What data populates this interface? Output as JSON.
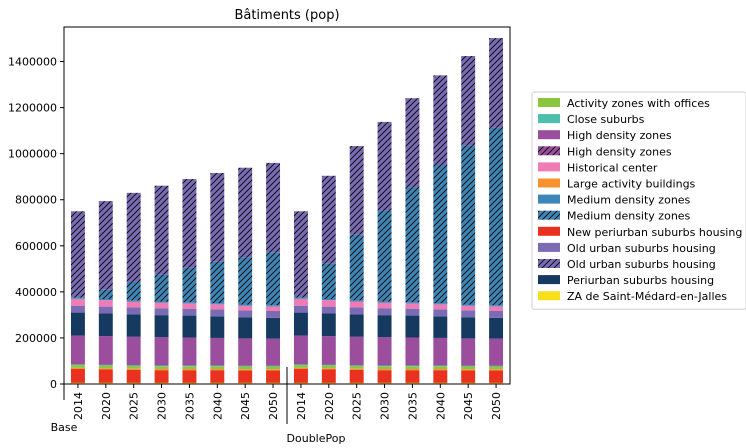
{
  "chart_data": {
    "type": "bar",
    "stacked": true,
    "title": "Bâtiments (pop)",
    "xlabel": "",
    "ylabel": "",
    "ylim": [
      0,
      1550000
    ],
    "yticks": [
      0,
      200000,
      400000,
      600000,
      800000,
      1000000,
      1200000,
      1400000
    ],
    "grid": false,
    "legend_position": "right",
    "groups": [
      {
        "label": "Base",
        "categories": [
          "2014",
          "2020",
          "2025",
          "2030",
          "2035",
          "2040",
          "2045",
          "2050"
        ]
      },
      {
        "label": "DoublePop",
        "categories": [
          "2014",
          "2020",
          "2025",
          "2030",
          "2035",
          "2040",
          "2045",
          "2050"
        ]
      }
    ],
    "series": [
      {
        "name": "ZA de Saint-Médard-en-Jalles",
        "color": "#f7e01b",
        "hatch": false,
        "values": [
          5000,
          5000,
          5000,
          5000,
          5000,
          5000,
          5000,
          5000,
          5000,
          5000,
          5000,
          5000,
          5000,
          5000,
          5000,
          5000
        ]
      },
      {
        "name": "New periurban suburbs housing",
        "color": "#e8311e",
        "hatch": false,
        "values": [
          60000,
          58000,
          56000,
          55000,
          55000,
          55000,
          54000,
          54000,
          60000,
          58000,
          56000,
          55000,
          55000,
          55000,
          54000,
          54000
        ]
      },
      {
        "name": "Large activity buildings",
        "color": "#f7922e",
        "hatch": false,
        "values": [
          5000,
          5000,
          5000,
          5000,
          5000,
          5000,
          5000,
          5000,
          5000,
          5000,
          5000,
          5000,
          5000,
          5000,
          5000,
          5000
        ]
      },
      {
        "name": "Activity zones with offices",
        "color": "#8cc63f",
        "hatch": false,
        "values": [
          12000,
          12000,
          12000,
          12000,
          12000,
          12000,
          12000,
          12000,
          12000,
          12000,
          12000,
          12000,
          12000,
          12000,
          12000,
          12000
        ]
      },
      {
        "name": "Close suburbs",
        "color": "#4dbfaa",
        "hatch": false,
        "values": [
          3000,
          3000,
          3000,
          3000,
          3000,
          3000,
          3000,
          3000,
          3000,
          3000,
          3000,
          3000,
          3000,
          3000,
          3000,
          3000
        ]
      },
      {
        "name": "High density zones",
        "color": "#9b4d9e",
        "hatch": false,
        "values": [
          125000,
          125000,
          124000,
          123000,
          122000,
          120000,
          119000,
          118000,
          125000,
          125000,
          124000,
          123000,
          122000,
          120000,
          119000,
          118000
        ]
      },
      {
        "name": "Periurban suburbs housing",
        "color": "#163a5f",
        "hatch": false,
        "values": [
          100000,
          98000,
          97000,
          96000,
          95000,
          94000,
          92000,
          90000,
          100000,
          98000,
          97000,
          96000,
          95000,
          94000,
          92000,
          90000
        ]
      },
      {
        "name": "Old urban suburbs housing",
        "color": "#7a6bb5",
        "hatch": false,
        "values": [
          30000,
          30000,
          30000,
          30000,
          30000,
          30000,
          30000,
          30000,
          30000,
          30000,
          30000,
          30000,
          30000,
          30000,
          30000,
          30000
        ]
      },
      {
        "name": "Historical center",
        "color": "#f07cb6",
        "hatch": false,
        "values": [
          30000,
          28000,
          26000,
          24000,
          23000,
          22000,
          20000,
          20000,
          30000,
          28000,
          26000,
          24000,
          23000,
          22000,
          20000,
          20000
        ]
      },
      {
        "name": "Medium density zones",
        "color": "#3d86b8",
        "hatch": false,
        "values": [
          5000,
          5000,
          5000,
          5000,
          5000,
          5000,
          5000,
          5000,
          5000,
          5000,
          5000,
          5000,
          5000,
          5000,
          5000,
          5000
        ]
      },
      {
        "name": "Medium density zones",
        "color": "#3d86b8",
        "hatch": true,
        "values": [
          5000,
          40000,
          80000,
          118000,
          150000,
          180000,
          205000,
          230000,
          5000,
          155000,
          285000,
          395000,
          500000,
          600000,
          690000,
          770000
        ]
      },
      {
        "name": "High density zones",
        "color": "#9b4d9e",
        "hatch": true,
        "values": [
          0,
          0,
          0,
          0,
          0,
          0,
          0,
          0,
          0,
          0,
          0,
          0,
          0,
          0,
          0,
          0
        ]
      },
      {
        "name": "Old urban suburbs housing",
        "color": "#7a6bb5",
        "hatch": true,
        "values": [
          370000,
          385000,
          387000,
          385000,
          385000,
          385000,
          389000,
          388000,
          370000,
          380000,
          385000,
          385000,
          386000,
          389000,
          389000,
          390000
        ]
      }
    ],
    "legend": [
      {
        "name": "Activity zones with offices",
        "color": "#8cc63f",
        "hatch": false
      },
      {
        "name": "Close suburbs",
        "color": "#4dbfaa",
        "hatch": false
      },
      {
        "name": "High density zones",
        "color": "#9b4d9e",
        "hatch": false
      },
      {
        "name": "High density zones",
        "color": "#9b4d9e",
        "hatch": true
      },
      {
        "name": "Historical center",
        "color": "#f07cb6",
        "hatch": false
      },
      {
        "name": "Large activity buildings",
        "color": "#f7922e",
        "hatch": false
      },
      {
        "name": "Medium density zones",
        "color": "#3d86b8",
        "hatch": false
      },
      {
        "name": "Medium density zones",
        "color": "#3d86b8",
        "hatch": true
      },
      {
        "name": "New periurban suburbs housing",
        "color": "#e8311e",
        "hatch": false
      },
      {
        "name": "Old urban suburbs housing",
        "color": "#7a6bb5",
        "hatch": false
      },
      {
        "name": "Old urban suburbs housing",
        "color": "#7a6bb5",
        "hatch": true
      },
      {
        "name": "Periurban suburbs housing",
        "color": "#163a5f",
        "hatch": false
      },
      {
        "name": "ZA de Saint-Médard-en-Jalles",
        "color": "#f7e01b",
        "hatch": false
      }
    ]
  }
}
